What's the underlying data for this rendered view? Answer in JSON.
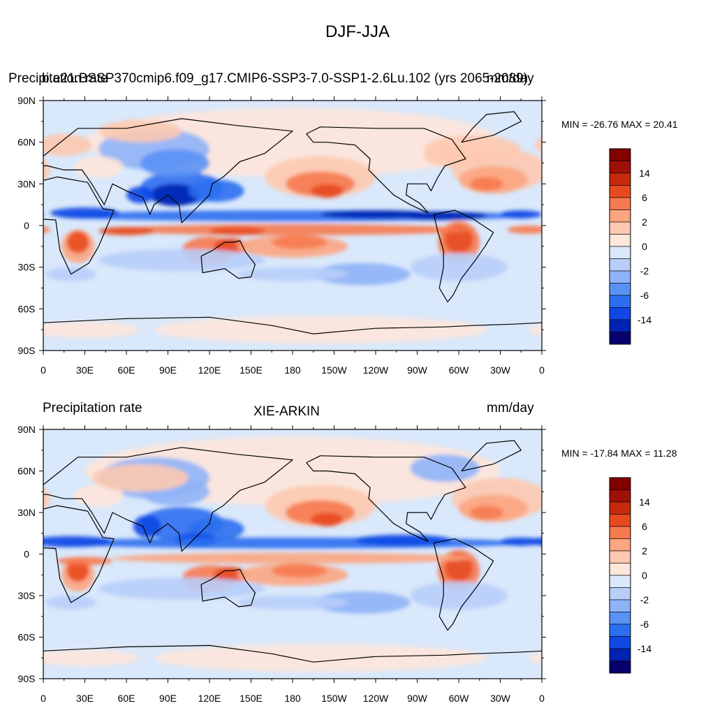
{
  "title": "DJF-JJA",
  "colors": {
    "levels": [
      "#08006e",
      "#0022b3",
      "#1047e6",
      "#2b6ff0",
      "#5a91f5",
      "#8fb3f7",
      "#b8cef9",
      "#d9e8fb",
      "#fde6da",
      "#fdc9b0",
      "#fca581",
      "#f67a4f",
      "#e84a20",
      "#c52a0c",
      "#a01006",
      "#820000"
    ],
    "ocean_base": "#d9e8fb",
    "coastline": "#000000"
  },
  "colorbar_labels": [
    "14",
    "6",
    "2",
    "0",
    "-2",
    "-6",
    "-14"
  ],
  "x_ticks": [
    "0",
    "30E",
    "60E",
    "90E",
    "120E",
    "150E",
    "180",
    "150W",
    "120W",
    "90W",
    "60W",
    "30W",
    "0"
  ],
  "y_ticks": [
    "90N",
    "60N",
    "30N",
    "0",
    "30S",
    "60S",
    "90S"
  ],
  "panels": [
    {
      "left_label": "Precipitation rate",
      "overlap_label": "b.e21.BSSP370cmip6.f09_g17.CMIP6-SSP3-7.0-SSP1-2.6Lu.102 (yrs 2065-2089)",
      "right_label": "mm/day",
      "stats": "MIN = -26.76 MAX =  20.41"
    },
    {
      "left_label": "Precipitation rate",
      "center_label": "XIE-ARKIN",
      "right_label": "mm/day",
      "stats": "MIN = -17.84 MAX =  11.28"
    }
  ],
  "map_data": {
    "projection": "cylindrical equidistant",
    "lon_range": [
      0,
      360
    ],
    "lat_range": [
      -90,
      90
    ],
    "variable": "Precipitation rate difference DJF-JJA",
    "units": "mm/day"
  }
}
